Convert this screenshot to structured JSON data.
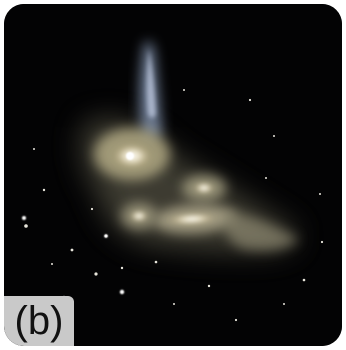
{
  "figure": {
    "panel_label": "(b)"
  }
}
